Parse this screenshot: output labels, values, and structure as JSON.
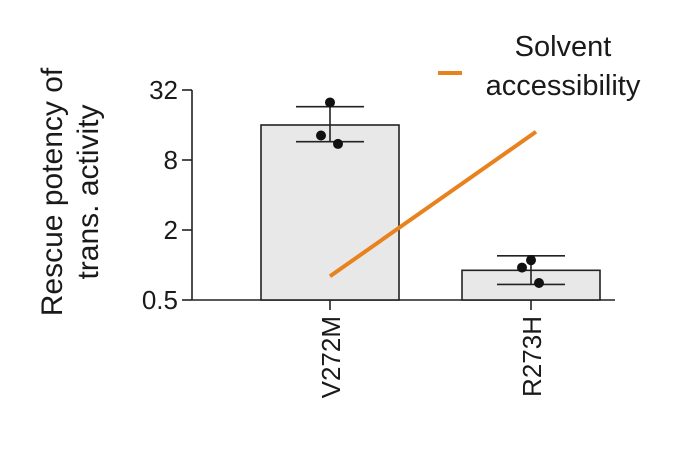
{
  "chart_data": {
    "type": "bar",
    "title": "",
    "xlabel": "",
    "ylabel": [
      "Rescue potency of",
      "trans. activity"
    ],
    "yscale": "log2",
    "ylim": [
      0.5,
      32
    ],
    "yticks": [
      0.5,
      2,
      8,
      32
    ],
    "ytick_labels": [
      "0.5",
      "2",
      "8",
      "32"
    ],
    "grid": false,
    "categories": [
      "V272M",
      "R273H"
    ],
    "values": [
      16,
      0.9
    ],
    "error_bars": [
      {
        "low": 11.5,
        "high": 23
      },
      {
        "low": 0.68,
        "high": 1.2
      }
    ],
    "points": [
      [
        25,
        13,
        11
      ],
      [
        1.1,
        0.95,
        0.7
      ]
    ],
    "bar_color": "#e8e8e8",
    "line_series": {
      "name": [
        "Solvent",
        "accessibility"
      ],
      "color": "#e8821e",
      "start": 0.8,
      "end": 14
    },
    "legend_position": "top-right"
  }
}
